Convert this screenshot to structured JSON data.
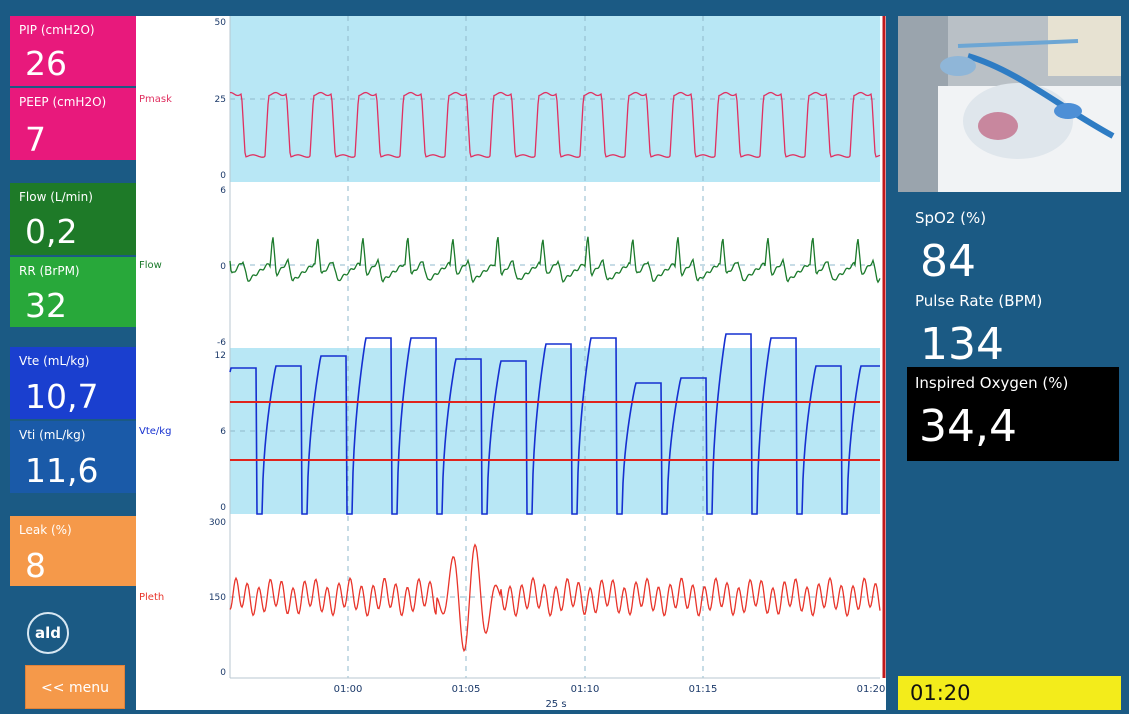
{
  "vitals_left": [
    {
      "label": "PIP (cmH2O)",
      "value": "26",
      "color": "#e8197c"
    },
    {
      "label": "PEEP (cmH2O)",
      "value": "7",
      "color": "#e8197c"
    },
    {
      "label": "Flow (L/min)",
      "value": "0,2",
      "color": "#1e7a28"
    },
    {
      "label": "RR (BrPM)",
      "value": "32",
      "color": "#28a83a"
    },
    {
      "label": "Vte (mL/kg)",
      "value": "10,7",
      "color": "#1a3fcf"
    },
    {
      "label": "Vti (mL/kg)",
      "value": "11,6",
      "color": "#1a5aa8"
    },
    {
      "label": "Leak (%)",
      "value": "8",
      "color": "#f5994a"
    }
  ],
  "logo_text": "ald",
  "menu_label": "<< menu",
  "waveforms": {
    "pmask": {
      "label": "Pmask",
      "ticks": [
        "50",
        "25",
        "0"
      ],
      "color": "#e03060"
    },
    "flow": {
      "label": "Flow",
      "ticks": [
        "6",
        "0",
        "-6"
      ],
      "color": "#1b7a2b"
    },
    "vte": {
      "label": "Vte/kg",
      "ticks": [
        "12",
        "6",
        "0"
      ],
      "color": "#1530d0"
    },
    "pleth": {
      "label": "Pleth",
      "ticks": [
        "300",
        "150",
        "0"
      ],
      "color": "#e8342a"
    }
  },
  "time_axis": {
    "ticks": [
      "01:00",
      "01:05",
      "01:10",
      "01:15",
      "01:20"
    ],
    "window": "25 s"
  },
  "vitals_right": {
    "spo2": {
      "label": "SpO2 (%)",
      "value": "84"
    },
    "pulse": {
      "label": "Pulse Rate (BPM)",
      "value": "134"
    },
    "oxygen": {
      "label": "Inspired Oxygen (%)",
      "value": "34,4"
    }
  },
  "elapsed": "01:20",
  "colors": {
    "background": "#1b5a84",
    "band": "#b8e7f5",
    "alarm_line": "#e0241c",
    "cursor": "#c0181c"
  }
}
